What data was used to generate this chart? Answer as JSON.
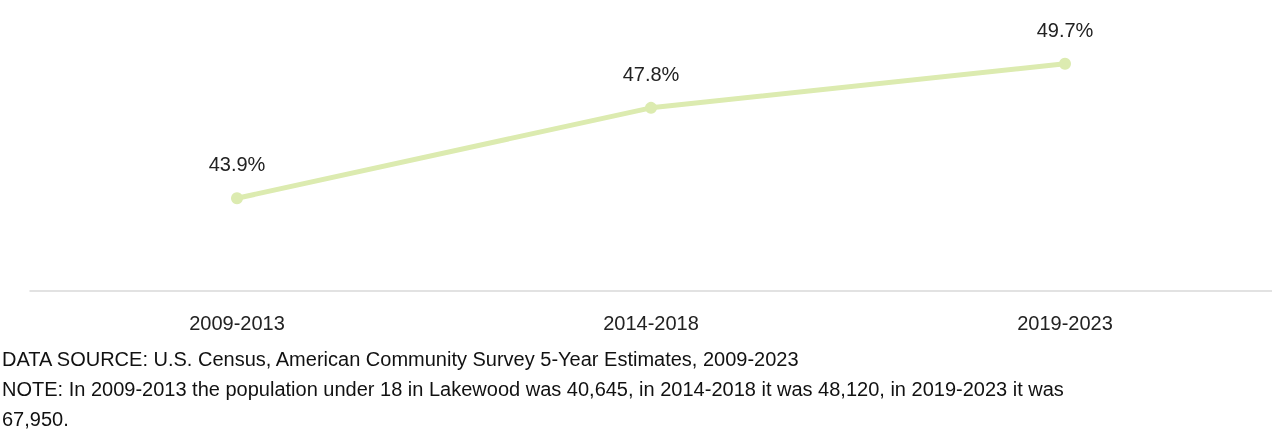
{
  "chart_data": {
    "type": "line",
    "categories": [
      "2009-2013",
      "2014-2018",
      "2019-2023"
    ],
    "series": [
      {
        "color": "#dcebb0",
        "values": [
          43.9,
          47.8,
          49.7
        ],
        "value_labels": [
          "43.9%",
          "47.8%",
          "49.7%"
        ]
      }
    ],
    "tick_labels": "x",
    "grid": false,
    "marker": "circle",
    "line_style": "solid",
    "annotations": [
      "DATA SOURCE: U.S. Census, American Community Survey 5-Year Estimates, 2009-2023",
      "NOTE: In 2009-2013 the population under 18 in Lakewood was 40,645, in 2014-2018 it was 48,120, in 2019-2023 it was 67,950."
    ]
  }
}
